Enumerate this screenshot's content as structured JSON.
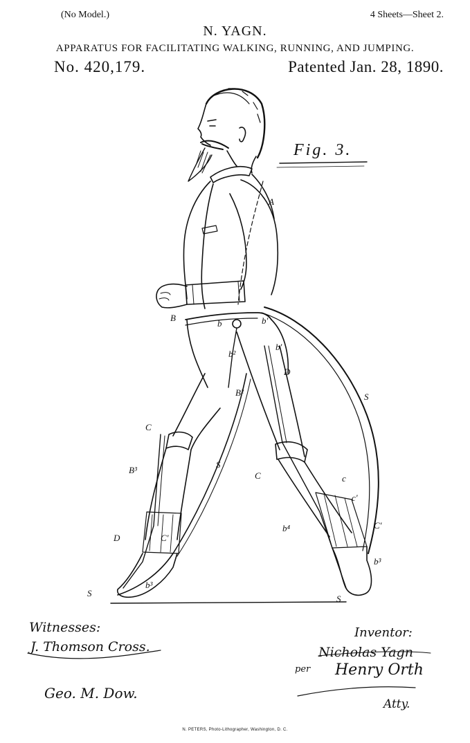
{
  "header": {
    "model_note": "(No Model.)",
    "sheets": "4 Sheets—Sheet 2.",
    "inventor": "N. YAGN.",
    "title": "APPARATUS FOR FACILITATING WALKING, RUNNING, AND JUMPING.",
    "patent_number": "No. 420,179.",
    "patent_date": "Patented Jan. 28, 1890."
  },
  "figure": {
    "label": "Fig. 3.",
    "reference_labels": [
      "A",
      "B",
      "b",
      "b'",
      "b'",
      "b²",
      "D",
      "B²",
      "S",
      "C",
      "B³",
      "S",
      "C",
      "c",
      "c'",
      "b⁴",
      "C'",
      "D",
      "C'",
      "b³",
      "b³",
      "S",
      "S"
    ]
  },
  "signatures": {
    "witnesses_heading": "Witnesses:",
    "witness_1": "J. Thomson Cross.",
    "witness_2": "Geo. M. Dow.",
    "inventor_heading": "Inventor:",
    "inventor_name": "Nicholas Yagn",
    "per": "per",
    "attorney": "Henry Orth",
    "attorney_suffix": "Atty."
  },
  "footer": {
    "lithographer": "N. PETERS, Photo-Lithographer, Washington, D. C."
  },
  "colors": {
    "ink": "#111111",
    "paper": "#ffffff"
  }
}
